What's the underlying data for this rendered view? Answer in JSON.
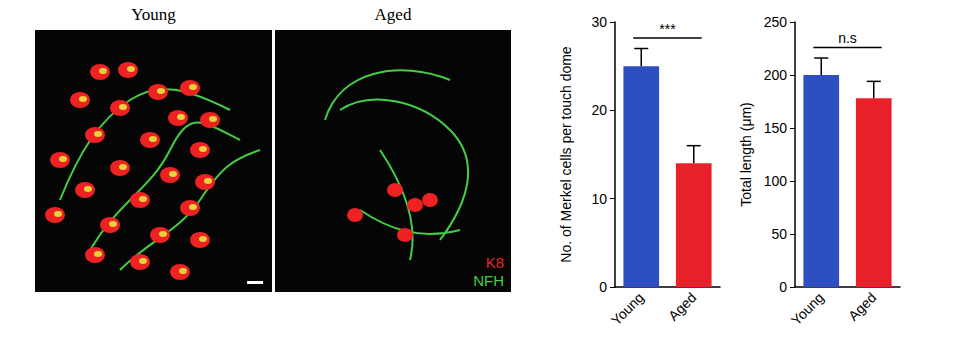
{
  "images": {
    "titles": [
      "Young",
      "Aged"
    ],
    "stain_legend": [
      {
        "text": "K8",
        "color": "#ee2222"
      },
      {
        "text": "NFH",
        "color": "#44cc44"
      }
    ]
  },
  "chart_data": [
    {
      "type": "bar",
      "y_label": "No. of Merkel cells per touch dome",
      "categories": [
        "Young",
        "Aged"
      ],
      "values": [
        25,
        14
      ],
      "errors": [
        2,
        2
      ],
      "colors": [
        "#2e4fc2",
        "#e8202a"
      ],
      "ylim": [
        0,
        30
      ],
      "yticks": [
        0,
        10,
        20,
        30
      ],
      "grid": false,
      "annotation": "***"
    },
    {
      "type": "bar",
      "y_label": "Total length (μm)",
      "categories": [
        "Young",
        "Aged"
      ],
      "values": [
        200,
        178
      ],
      "errors": [
        16,
        16
      ],
      "colors": [
        "#2e4fc2",
        "#e8202a"
      ],
      "ylim": [
        0,
        250
      ],
      "yticks": [
        0,
        50,
        100,
        150,
        200,
        250
      ],
      "grid": false,
      "annotation": "n.s"
    }
  ]
}
